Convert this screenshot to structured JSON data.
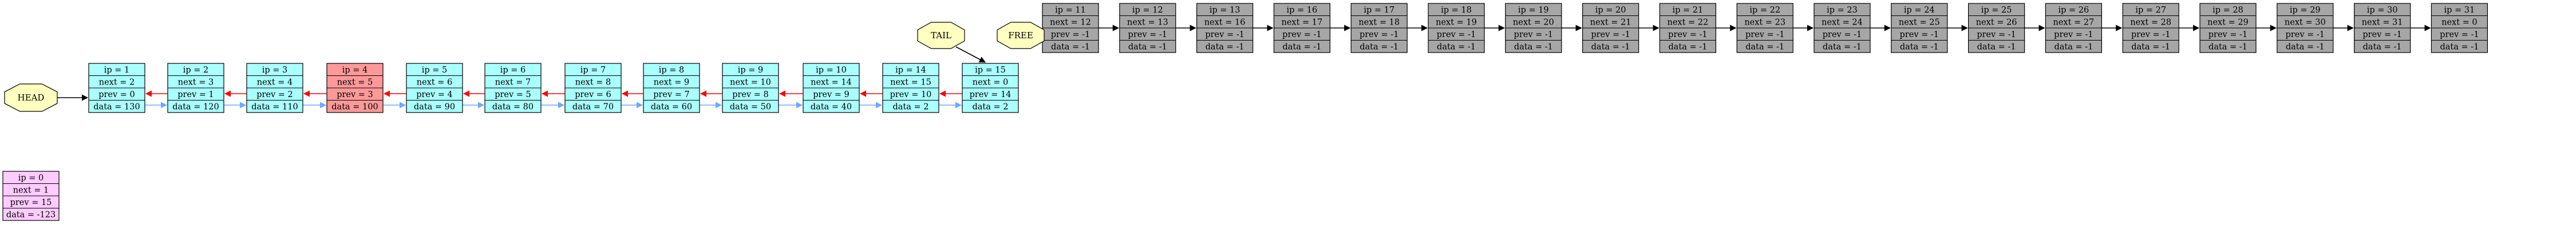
{
  "colors": {
    "active_fill": "#aaffff",
    "highlight_fill": "#ff9999",
    "free_fill": "#a6a6a6",
    "dummy_fill": "#ffccff",
    "label_fill": "#ffffc0",
    "next_edge": "#ff0000",
    "prev_edge": "#6fa8ff",
    "free_edge": "#000000"
  },
  "labels": {
    "head": "HEAD",
    "tail": "TAIL",
    "free": "FREE"
  },
  "dummy": {
    "ip": "ip = 0",
    "next": "next = 1",
    "prev": "prev = 15",
    "data": "data = -123"
  },
  "list_nodes": [
    {
      "ip": "ip = 1",
      "next": "next = 2",
      "prev": "prev = 0",
      "data": "data = 130",
      "highlight": false
    },
    {
      "ip": "ip = 2",
      "next": "next = 3",
      "prev": "prev = 1",
      "data": "data = 120",
      "highlight": false
    },
    {
      "ip": "ip = 3",
      "next": "next = 4",
      "prev": "prev = 2",
      "data": "data = 110",
      "highlight": false
    },
    {
      "ip": "ip = 4",
      "next": "next = 5",
      "prev": "prev = 3",
      "data": "data = 100",
      "highlight": true
    },
    {
      "ip": "ip = 5",
      "next": "next = 6",
      "prev": "prev = 4",
      "data": "data = 90",
      "highlight": false
    },
    {
      "ip": "ip = 6",
      "next": "next = 7",
      "prev": "prev = 5",
      "data": "data = 80",
      "highlight": false
    },
    {
      "ip": "ip = 7",
      "next": "next = 8",
      "prev": "prev = 6",
      "data": "data = 70",
      "highlight": false
    },
    {
      "ip": "ip = 8",
      "next": "next = 9",
      "prev": "prev = 7",
      "data": "data = 60",
      "highlight": false
    },
    {
      "ip": "ip = 9",
      "next": "next = 10",
      "prev": "prev = 8",
      "data": "data = 50",
      "highlight": false
    },
    {
      "ip": "ip = 10",
      "next": "next = 14",
      "prev": "prev = 9",
      "data": "data = 40",
      "highlight": false
    },
    {
      "ip": "ip = 14",
      "next": "next = 15",
      "prev": "prev = 10",
      "data": "data = 2",
      "highlight": false
    },
    {
      "ip": "ip = 15",
      "next": "next = 0",
      "prev": "prev = 14",
      "data": "data = 2",
      "highlight": false
    }
  ],
  "free_nodes": [
    {
      "ip": "ip = 11",
      "next": "next = 12",
      "prev": "prev = -1",
      "data": "data = -1"
    },
    {
      "ip": "ip = 12",
      "next": "next = 13",
      "prev": "prev = -1",
      "data": "data = -1"
    },
    {
      "ip": "ip = 13",
      "next": "next = 16",
      "prev": "prev = -1",
      "data": "data = -1"
    },
    {
      "ip": "ip = 16",
      "next": "next = 17",
      "prev": "prev = -1",
      "data": "data = -1"
    },
    {
      "ip": "ip = 17",
      "next": "next = 18",
      "prev": "prev = -1",
      "data": "data = -1"
    },
    {
      "ip": "ip = 18",
      "next": "next = 19",
      "prev": "prev = -1",
      "data": "data = -1"
    },
    {
      "ip": "ip = 19",
      "next": "next = 20",
      "prev": "prev = -1",
      "data": "data = -1"
    },
    {
      "ip": "ip = 20",
      "next": "next = 21",
      "prev": "prev = -1",
      "data": "data = -1"
    },
    {
      "ip": "ip = 21",
      "next": "next = 22",
      "prev": "prev = -1",
      "data": "data = -1"
    },
    {
      "ip": "ip = 22",
      "next": "next = 23",
      "prev": "prev = -1",
      "data": "data = -1"
    },
    {
      "ip": "ip = 23",
      "next": "next = 24",
      "prev": "prev = -1",
      "data": "data = -1"
    },
    {
      "ip": "ip = 24",
      "next": "next = 25",
      "prev": "prev = -1",
      "data": "data = -1"
    },
    {
      "ip": "ip = 25",
      "next": "next = 26",
      "prev": "prev = -1",
      "data": "data = -1"
    },
    {
      "ip": "ip = 26",
      "next": "next = 27",
      "prev": "prev = -1",
      "data": "data = -1"
    },
    {
      "ip": "ip = 27",
      "next": "next = 28",
      "prev": "prev = -1",
      "data": "data = -1"
    },
    {
      "ip": "ip = 28",
      "next": "next = 29",
      "prev": "prev = -1",
      "data": "data = -1"
    },
    {
      "ip": "ip = 29",
      "next": "next = 30",
      "prev": "prev = -1",
      "data": "data = -1"
    },
    {
      "ip": "ip = 30",
      "next": "next = 31",
      "prev": "prev = -1",
      "data": "data = -1"
    },
    {
      "ip": "ip = 31",
      "next": "next = 0",
      "prev": "prev = -1",
      "data": "data = -1"
    }
  ]
}
